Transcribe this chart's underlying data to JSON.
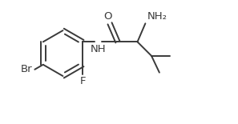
{
  "background_color": "#ffffff",
  "line_color": "#3a3a3a",
  "text_color": "#3a3a3a",
  "font_size": 9.5,
  "line_width": 1.4,
  "figsize": [
    2.97,
    1.55
  ],
  "dpi": 100,
  "xlim": [
    -1.6,
    3.8
  ],
  "ylim": [
    -1.5,
    1.3
  ]
}
